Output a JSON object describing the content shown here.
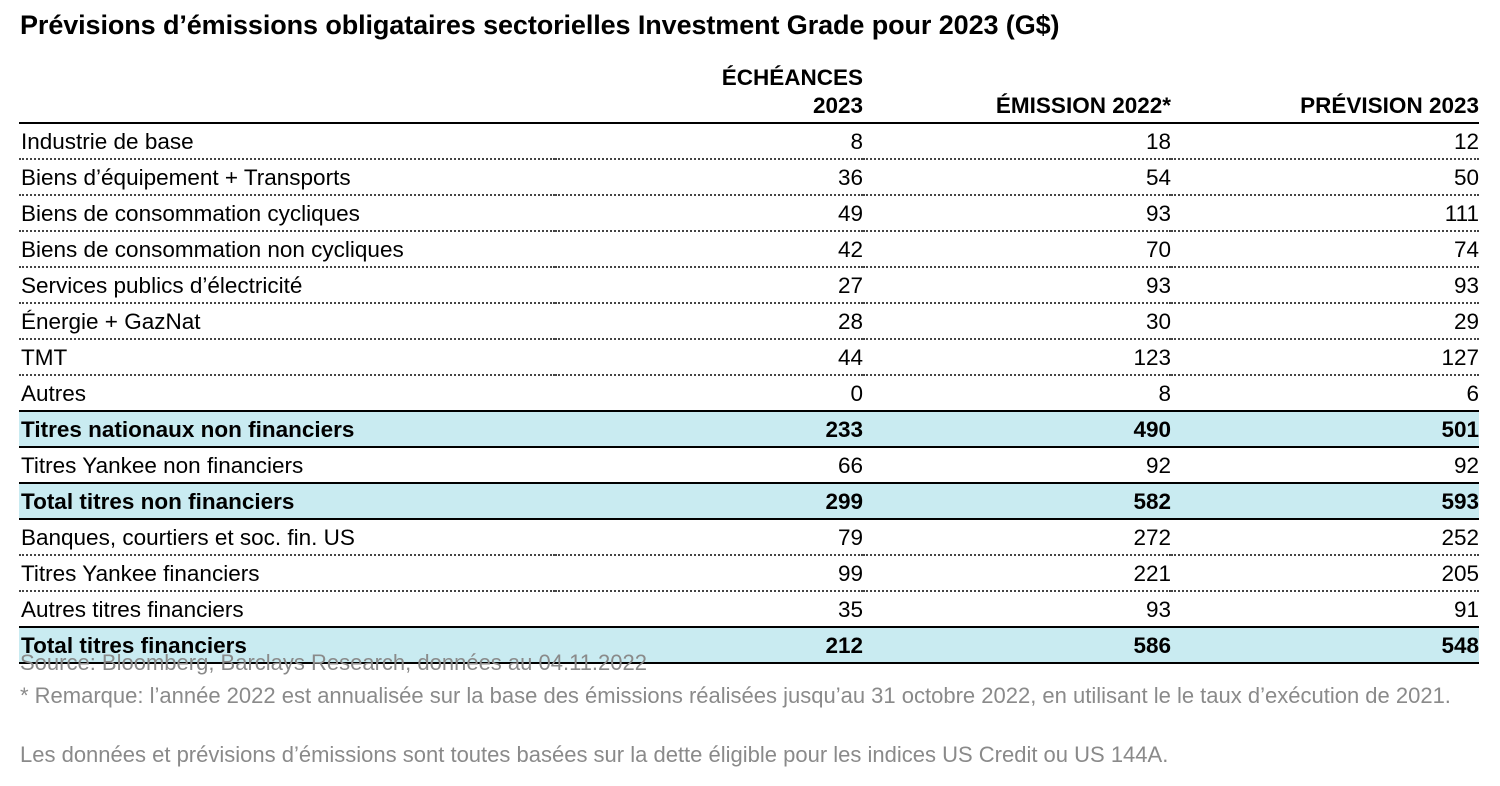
{
  "title": "Prévisions d’émissions obligataires sectorielles Investment Grade pour 2023 (G$)",
  "chart_data": {
    "type": "table",
    "title": "Prévisions d’émissions obligataires sectorielles Investment Grade pour 2023 (G$)",
    "columns": [
      "",
      "ÉCHÉANCES 2023",
      "ÉMISSION 2022*",
      "PRÉVISION 2023"
    ],
    "header_lines": [
      [
        "ÉCHÉANCES",
        "2023"
      ],
      [
        "ÉMISSION 2022*"
      ],
      [
        "PRÉVISION 2023"
      ]
    ],
    "rows": [
      {
        "label": "Industrie de base",
        "values": [
          "8",
          "18",
          "12"
        ],
        "total": false
      },
      {
        "label": "Biens d’équipement + Transports",
        "values": [
          "36",
          "54",
          "50"
        ],
        "total": false
      },
      {
        "label": "Biens de consommation cycliques",
        "values": [
          "49",
          "93",
          "111"
        ],
        "total": false
      },
      {
        "label": "Biens de consommation non cycliques",
        "values": [
          "42",
          "70",
          "74"
        ],
        "total": false
      },
      {
        "label": "Services publics d’électricité",
        "values": [
          "27",
          "93",
          "93"
        ],
        "total": false
      },
      {
        "label": "Énergie + GazNat",
        "values": [
          "28",
          "30",
          "29"
        ],
        "total": false
      },
      {
        "label": "TMT",
        "values": [
          "44",
          "123",
          "127"
        ],
        "total": false
      },
      {
        "label": "Autres",
        "values": [
          "0",
          "8",
          "6"
        ],
        "total": false
      },
      {
        "label": "Titres nationaux non financiers",
        "values": [
          "233",
          "490",
          "501"
        ],
        "total": true
      },
      {
        "label": "Titres Yankee non financiers",
        "values": [
          "66",
          "92",
          "92"
        ],
        "total": false
      },
      {
        "label": "Total titres non financiers",
        "values": [
          "299",
          "582",
          "593"
        ],
        "total": true
      },
      {
        "label": "Banques, courtiers et soc. fin. US",
        "values": [
          "79",
          "272",
          "252"
        ],
        "total": false
      },
      {
        "label": "Titres Yankee financiers",
        "values": [
          "99",
          "221",
          "205"
        ],
        "total": false
      },
      {
        "label": "Autres titres financiers",
        "values": [
          "35",
          "93",
          "91"
        ],
        "total": false
      },
      {
        "label": "Total titres financiers",
        "values": [
          "212",
          "586",
          "548"
        ],
        "total": true
      }
    ],
    "highlight_color": "#c9ebf1"
  },
  "footnotes": {
    "source": "Source: Bloomberg, Barclays Research, données au 04.11.2022",
    "note": "* Remarque: l’année 2022 est annualisée sur la base des émissions réalisées jusqu’au 31 octobre 2022, en utilisant le le taux d’exécution de 2021.",
    "basis": "Les données et prévisions d’émissions sont toutes basées sur la dette éligible pour les indices US Credit ou US 144A."
  }
}
